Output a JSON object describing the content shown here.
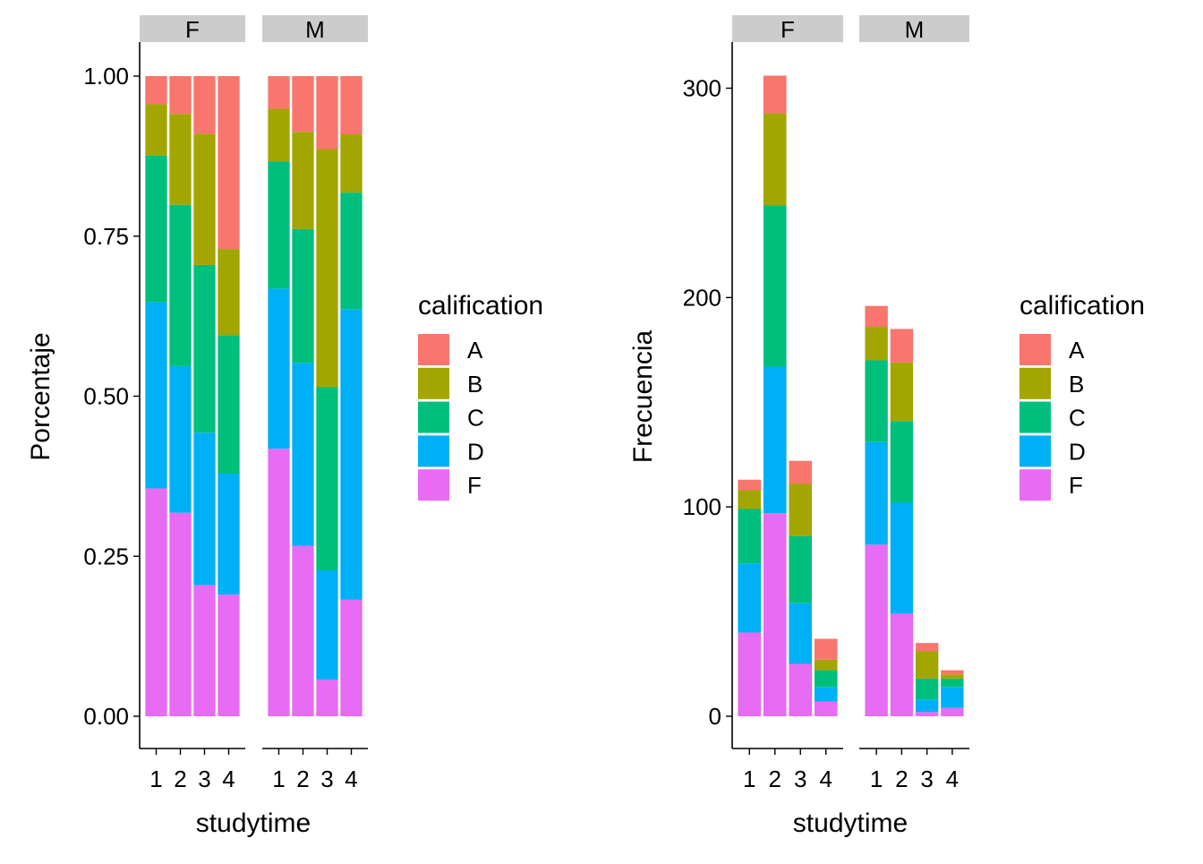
{
  "chart_data": [
    {
      "type": "bar",
      "stacking": "fill",
      "xlabel": "studytime",
      "ylabel": "Porcentaje",
      "ylim": [
        0,
        1
      ],
      "yticks": [
        "0.00",
        "0.25",
        "0.50",
        "0.75",
        "1.00"
      ],
      "categories": [
        "1",
        "2",
        "3",
        "4"
      ],
      "legend": {
        "title": "calification",
        "position": "right"
      },
      "facets": [
        {
          "label": "F",
          "series": [
            {
              "name": "F",
              "values": [
                0.356,
                0.318,
                0.205,
                0.19
              ]
            },
            {
              "name": "D",
              "values": [
                0.291,
                0.229,
                0.238,
                0.189
              ]
            },
            {
              "name": "C",
              "values": [
                0.229,
                0.252,
                0.262,
                0.216
              ]
            },
            {
              "name": "B",
              "values": [
                0.08,
                0.142,
                0.205,
                0.135
              ]
            },
            {
              "name": "A",
              "values": [
                0.044,
                0.059,
                0.09,
                0.27
              ]
            }
          ]
        },
        {
          "label": "M",
          "series": [
            {
              "name": "F",
              "values": [
                0.418,
                0.266,
                0.057,
                0.182
              ]
            },
            {
              "name": "D",
              "values": [
                0.25,
                0.286,
                0.171,
                0.454
              ]
            },
            {
              "name": "C",
              "values": [
                0.199,
                0.209,
                0.286,
                0.182
              ]
            },
            {
              "name": "B",
              "values": [
                0.082,
                0.152,
                0.372,
                0.091
              ]
            },
            {
              "name": "A",
              "values": [
                0.051,
                0.087,
                0.114,
                0.091
              ]
            }
          ]
        }
      ]
    },
    {
      "type": "bar",
      "stacking": "stack",
      "xlabel": "studytime",
      "ylabel": "Frecuencia",
      "ylim": [
        0,
        320
      ],
      "yticks": [
        "0",
        "100",
        "200",
        "300"
      ],
      "categories": [
        "1",
        "2",
        "3",
        "4"
      ],
      "legend": {
        "title": "calification",
        "position": "right"
      },
      "facets": [
        {
          "label": "F",
          "series": [
            {
              "name": "F",
              "values": [
                40,
                97,
                25,
                7
              ]
            },
            {
              "name": "D",
              "values": [
                33,
                70,
                29,
                7
              ]
            },
            {
              "name": "C",
              "values": [
                26,
                77,
                32,
                8
              ]
            },
            {
              "name": "B",
              "values": [
                9,
                44,
                25,
                5
              ]
            },
            {
              "name": "A",
              "values": [
                5,
                18,
                11,
                10
              ]
            }
          ]
        },
        {
          "label": "M",
          "series": [
            {
              "name": "F",
              "values": [
                82,
                49,
                2,
                4
              ]
            },
            {
              "name": "D",
              "values": [
                49,
                53,
                6,
                10
              ]
            },
            {
              "name": "C",
              "values": [
                39,
                39,
                10,
                4
              ]
            },
            {
              "name": "B",
              "values": [
                16,
                28,
                13,
                2
              ]
            },
            {
              "name": "A",
              "values": [
                10,
                16,
                4,
                2
              ]
            }
          ]
        }
      ]
    }
  ],
  "legend_items": [
    {
      "label": "A",
      "color": "#F8766D"
    },
    {
      "label": "B",
      "color": "#A3A500"
    },
    {
      "label": "C",
      "color": "#00BF7D"
    },
    {
      "label": "D",
      "color": "#00B0F6"
    },
    {
      "label": "F",
      "color": "#E76BF3"
    }
  ]
}
